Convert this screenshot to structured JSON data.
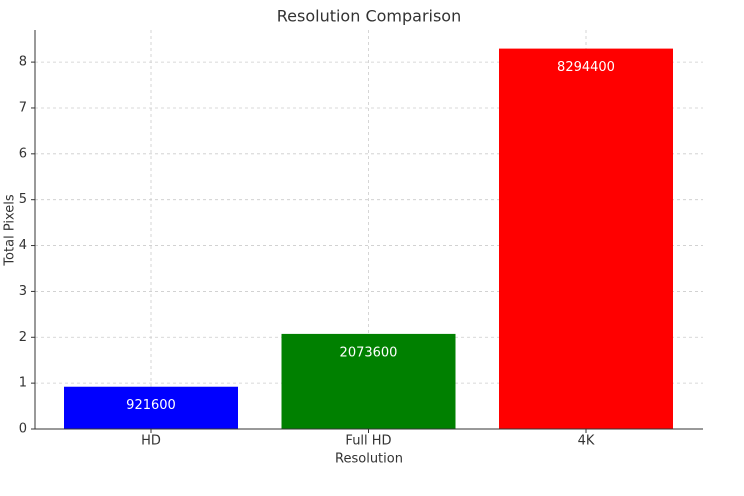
{
  "chart_data": {
    "type": "bar",
    "title": "Resolution Comparison",
    "x_label": "Resolution",
    "y_label": "Total Pixels",
    "categories": [
      "HD",
      "Full HD",
      "4K"
    ],
    "values": [
      921600,
      2073600,
      8294400
    ],
    "colors": [
      "blue",
      "green",
      "red"
    ],
    "ylim": [
      0,
      8700000
    ],
    "yticks": [
      0,
      {
        "value": 1000000,
        "label": "1"
      },
      {
        "value": 2000000,
        "label": "2"
      },
      {
        "value": 3000000,
        "label": "3"
      },
      {
        "value": 4000000,
        "label": "4"
      },
      {
        "value": 5000000,
        "label": "5"
      },
      {
        "value": 6000000,
        "label": "6"
      },
      {
        "value": 7000000,
        "label": "7"
      },
      {
        "value": 8000000,
        "label": "8"
      }
    ],
    "grid": true
  }
}
